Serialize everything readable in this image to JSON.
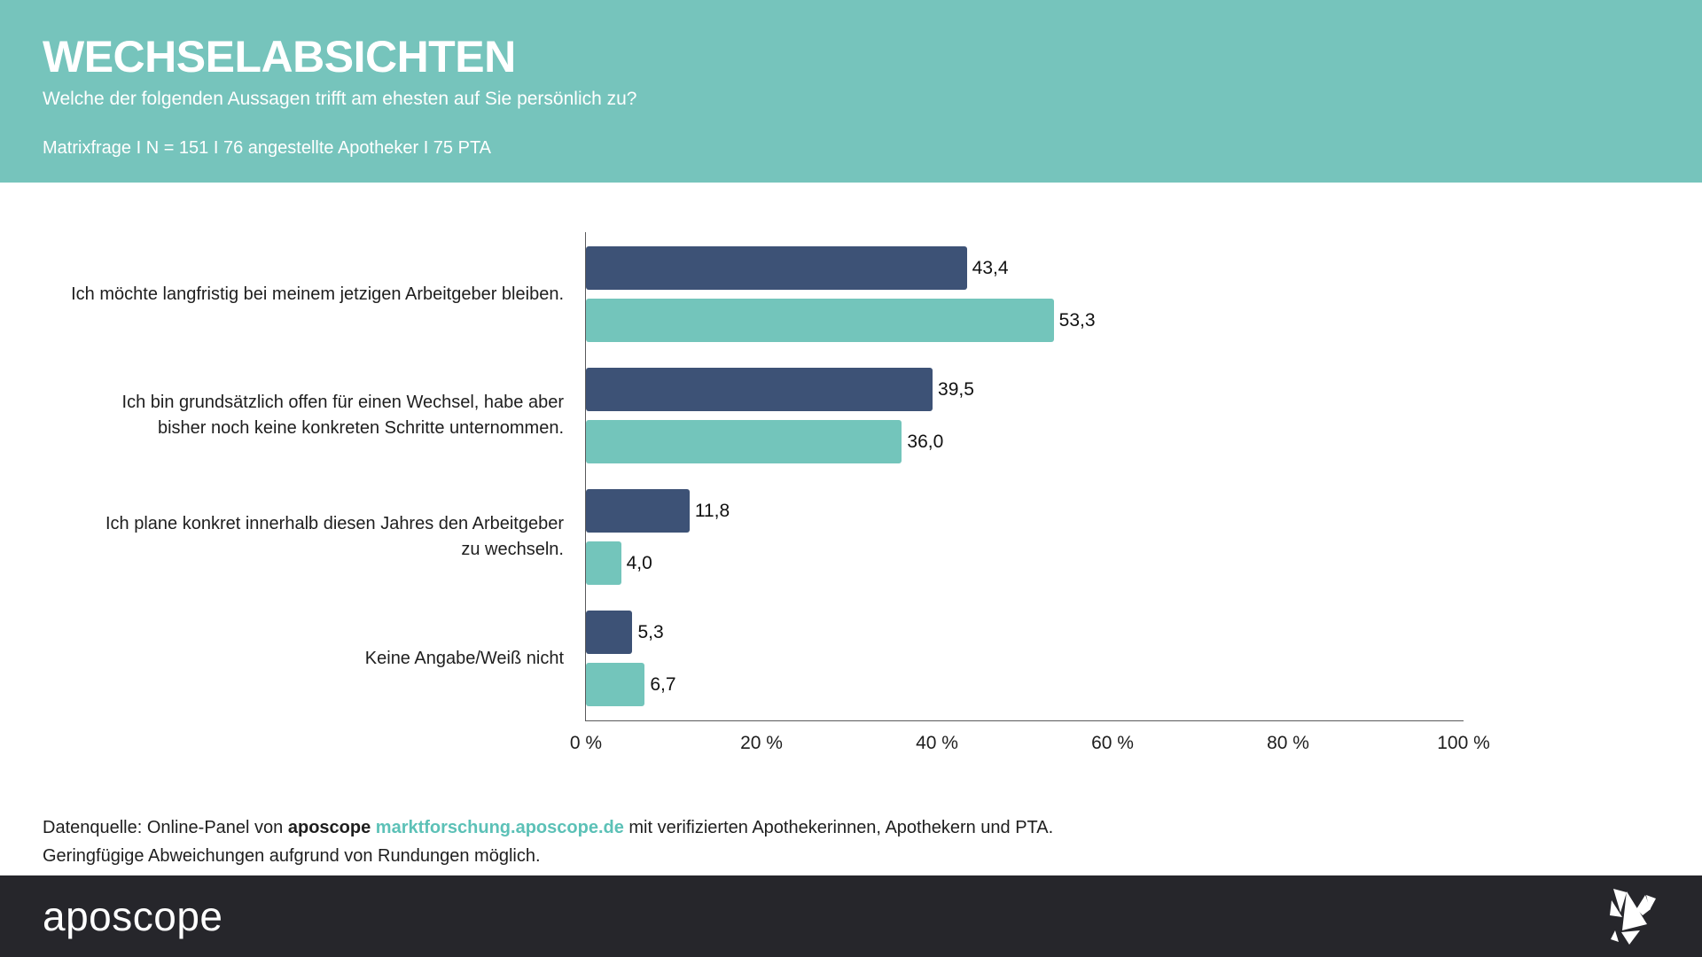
{
  "header": {
    "title": "WECHSELABSICHTEN",
    "subtitle": "Welche der folgenden Aussagen trifft am ehesten auf Sie persönlich zu?",
    "meta": "Matrixfrage I N = 151 I 76 angestellte Apotheker I 75 PTA",
    "background": "#76C4BC"
  },
  "chart_data": {
    "type": "bar",
    "orientation": "horizontal",
    "categories": [
      "Ich möchte langfristig bei meinem jetzigen Arbeitgeber bleiben.",
      "Ich bin grundsätzlich offen für einen Wechsel, habe aber bisher noch keine konkreten Schritte unternommen.",
      "Ich plane konkret innerhalb diesen Jahres den Arbeitgeber zu wechseln.",
      "Keine Angabe/Weiß nicht"
    ],
    "category_lines": [
      [
        "Ich möchte langfristig bei meinem jetzigen Arbeitgeber bleiben."
      ],
      [
        "Ich bin grundsätzlich offen für einen Wechsel, habe aber",
        "bisher noch keine konkreten Schritte unternommen."
      ],
      [
        "Ich plane konkret innerhalb diesen Jahres den Arbeitgeber",
        "zu wechseln."
      ],
      [
        "Keine Angabe/Weiß nicht"
      ]
    ],
    "series": [
      {
        "name": "dark-blue-series",
        "color": "#3D5276",
        "values": [
          43.4,
          39.5,
          11.8,
          5.3
        ],
        "value_labels": [
          "43,4",
          "39,5",
          "11,8",
          "5,3"
        ]
      },
      {
        "name": "teal-series",
        "color": "#73C5BB",
        "values": [
          53.3,
          36.0,
          4.0,
          6.7
        ],
        "value_labels": [
          "53,3",
          "36,0",
          "4,0",
          "6,7"
        ]
      }
    ],
    "x_ticks": [
      "0 %",
      "20 %",
      "40 %",
      "60 %",
      "80 %",
      "100 %"
    ],
    "xlim": [
      0,
      100
    ],
    "grid": false,
    "legend": "none"
  },
  "source": {
    "prefix": "Datenquelle: Online-Panel von ",
    "brand": "aposcope",
    "separator": " ",
    "link": "marktforschung.aposcope.de",
    "suffix": " mit verifizierten Apothekerinnen, Apothekern und PTA.",
    "line2": "Geringfügige Abweichungen aufgrund von Rundungen möglich."
  },
  "footer": {
    "logo_text": "aposcope",
    "background": "#26262B",
    "icon": "origami-bird-icon"
  },
  "colors": {
    "navy": "#3D5276",
    "teal": "#73C5BB",
    "header_teal": "#76C4BC",
    "footer_dark": "#26262B",
    "link_teal": "#5CC1B7",
    "axis_gray": "#59595B"
  }
}
